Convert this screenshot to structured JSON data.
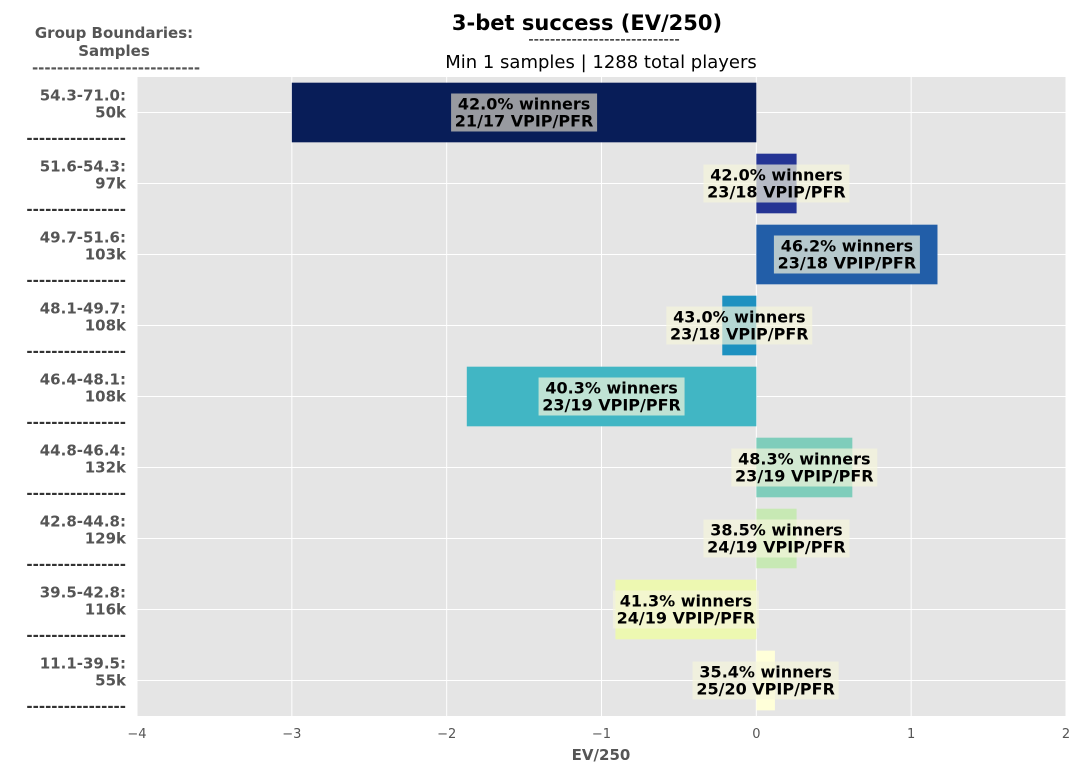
{
  "chart_data": {
    "type": "bar",
    "orientation": "horizontal",
    "title": "3-bet success (EV/250)",
    "title_underline": "----------------------------",
    "subtitle": "Min 1 samples | 1288 total players",
    "xlabel": "EV/250",
    "xlim": [
      -4,
      2
    ],
    "xticks": [
      -4,
      -3,
      -2,
      -1,
      0,
      1,
      2
    ],
    "xtick_labels": [
      "−4",
      "−3",
      "−2",
      "−1",
      "0",
      "1",
      "2"
    ],
    "grid": true,
    "group_header": [
      "Group Boundaries:",
      "Samples",
      "---------------------------"
    ],
    "separator": "----------------",
    "groups": [
      {
        "boundary": "54.3-71.0:",
        "samples": "50k",
        "value": -3.0,
        "winners": "42.0% winners",
        "vpip_pfr": "21/17 VPIP/PFR",
        "color": "#081d58"
      },
      {
        "boundary": "51.6-54.3:",
        "samples": "97k",
        "value": 0.26,
        "winners": "42.0% winners",
        "vpip_pfr": "23/18 VPIP/PFR",
        "color": "#253494"
      },
      {
        "boundary": "49.7-51.6:",
        "samples": "103k",
        "value": 1.17,
        "winners": "46.2% winners",
        "vpip_pfr": "23/18 VPIP/PFR",
        "color": "#225ea8"
      },
      {
        "boundary": "48.1-49.7:",
        "samples": "108k",
        "value": -0.22,
        "winners": "43.0% winners",
        "vpip_pfr": "23/18 VPIP/PFR",
        "color": "#1d91c0"
      },
      {
        "boundary": "46.4-48.1:",
        "samples": "108k",
        "value": -1.87,
        "winners": "40.3% winners",
        "vpip_pfr": "23/19 VPIP/PFR",
        "color": "#41b6c4"
      },
      {
        "boundary": "44.8-46.4:",
        "samples": "132k",
        "value": 0.62,
        "winners": "48.3% winners",
        "vpip_pfr": "23/19 VPIP/PFR",
        "color": "#7fcdbb"
      },
      {
        "boundary": "42.8-44.8:",
        "samples": "129k",
        "value": 0.26,
        "winners": "38.5% winners",
        "vpip_pfr": "24/19 VPIP/PFR",
        "color": "#c7e9b4"
      },
      {
        "boundary": "39.5-42.8:",
        "samples": "116k",
        "value": -0.91,
        "winners": "41.3% winners",
        "vpip_pfr": "24/19 VPIP/PFR",
        "color": "#edf8b1"
      },
      {
        "boundary": "11.1-39.5:",
        "samples": "55k",
        "value": 0.12,
        "winners": "35.4% winners",
        "vpip_pfr": "25/20 VPIP/PFR",
        "color": "#ffffd9"
      }
    ],
    "colors": {
      "plot_background": "#e5e5e5",
      "grid": "#ffffff",
      "label_box": "#f5f5dc",
      "label_box_dark": "#a8a8a8"
    }
  }
}
